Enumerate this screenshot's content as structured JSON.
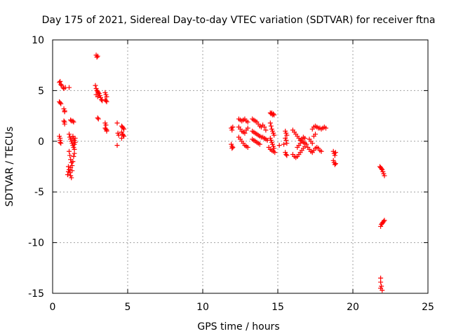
{
  "chart_data": {
    "type": "scatter",
    "title": "Day 175 of 2021, Sidereal Day-to-day VTEC variation (SDTVAR) for receiver ftna",
    "xlabel": "GPS time / hours",
    "ylabel": "SDTVAR / TECUs",
    "xlim": [
      0,
      25
    ],
    "ylim": [
      -15,
      10
    ],
    "xticks": [
      0,
      5,
      10,
      15,
      20,
      25
    ],
    "yticks": [
      10,
      5,
      0,
      -5,
      -10,
      -15
    ],
    "grid": true,
    "marker": "+",
    "color": "#ff0000",
    "series": [
      {
        "name": "SDTVAR",
        "points": [
          [
            0.45,
            5.8
          ],
          [
            0.5,
            5.9
          ],
          [
            0.55,
            5.6
          ],
          [
            0.6,
            5.5
          ],
          [
            0.7,
            5.3
          ],
          [
            0.75,
            5.2
          ],
          [
            0.85,
            5.3
          ],
          [
            0.45,
            3.9
          ],
          [
            0.5,
            3.8
          ],
          [
            0.55,
            3.7
          ],
          [
            0.75,
            3.2
          ],
          [
            0.8,
            3.0
          ],
          [
            0.8,
            2.9
          ],
          [
            0.75,
            2.0
          ],
          [
            0.8,
            1.9
          ],
          [
            0.8,
            1.7
          ],
          [
            0.45,
            0.5
          ],
          [
            0.5,
            0.3
          ],
          [
            0.5,
            0.1
          ],
          [
            0.5,
            -0.1
          ],
          [
            0.55,
            -0.2
          ],
          [
            1.1,
            5.3
          ],
          [
            1.2,
            2.1
          ],
          [
            1.25,
            2.0
          ],
          [
            1.35,
            2.0
          ],
          [
            1.4,
            1.9
          ],
          [
            1.1,
            0.7
          ],
          [
            1.15,
            0.4
          ],
          [
            1.2,
            0.2
          ],
          [
            1.25,
            0.0
          ],
          [
            1.3,
            -0.2
          ],
          [
            1.35,
            -0.4
          ],
          [
            1.4,
            -0.6
          ],
          [
            1.45,
            -0.8
          ],
          [
            1.35,
            0.5
          ],
          [
            1.4,
            0.3
          ],
          [
            1.45,
            0.1
          ],
          [
            1.1,
            -1.0
          ],
          [
            1.15,
            -1.4
          ],
          [
            1.2,
            -1.8
          ],
          [
            1.25,
            -2.1
          ],
          [
            1.3,
            -2.4
          ],
          [
            1.35,
            -2.0
          ],
          [
            1.4,
            -1.5
          ],
          [
            1.45,
            -1.2
          ],
          [
            1.05,
            -2.5
          ],
          [
            1.1,
            -2.8
          ],
          [
            1.15,
            -3.1
          ],
          [
            1.2,
            -3.4
          ],
          [
            1.25,
            -3.6
          ],
          [
            1.0,
            -3.3
          ],
          [
            1.05,
            -3.0
          ],
          [
            1.2,
            -2.6
          ],
          [
            1.3,
            -2.9
          ],
          [
            1.45,
            -0.3
          ],
          [
            1.5,
            -0.1
          ],
          [
            1.5,
            0.3
          ],
          [
            2.9,
            8.5
          ],
          [
            2.95,
            8.3
          ],
          [
            3.0,
            8.4
          ],
          [
            2.85,
            5.5
          ],
          [
            2.9,
            5.2
          ],
          [
            2.95,
            5.0
          ],
          [
            3.0,
            4.9
          ],
          [
            3.05,
            4.8
          ],
          [
            3.1,
            4.7
          ],
          [
            3.15,
            4.5
          ],
          [
            3.2,
            4.3
          ],
          [
            3.25,
            4.1
          ],
          [
            3.3,
            4.0
          ],
          [
            2.9,
            4.6
          ],
          [
            3.0,
            4.4
          ],
          [
            3.5,
            4.8
          ],
          [
            3.55,
            4.6
          ],
          [
            3.6,
            4.4
          ],
          [
            3.5,
            4.1
          ],
          [
            3.55,
            4.0
          ],
          [
            3.6,
            3.9
          ],
          [
            3.0,
            2.3
          ],
          [
            3.05,
            2.2
          ],
          [
            3.5,
            1.8
          ],
          [
            3.55,
            1.6
          ],
          [
            3.5,
            1.3
          ],
          [
            3.55,
            1.2
          ],
          [
            3.6,
            1.1
          ],
          [
            3.6,
            1.0
          ],
          [
            4.3,
            1.8
          ],
          [
            4.35,
            0.8
          ],
          [
            4.4,
            0.6
          ],
          [
            4.3,
            -0.4
          ],
          [
            4.6,
            1.5
          ],
          [
            4.65,
            1.4
          ],
          [
            4.7,
            1.3
          ],
          [
            4.75,
            1.2
          ],
          [
            4.6,
            0.9
          ],
          [
            4.65,
            0.7
          ],
          [
            4.7,
            0.6
          ],
          [
            4.75,
            0.5
          ],
          [
            4.6,
            0.3
          ],
          [
            11.9,
            1.3
          ],
          [
            11.95,
            1.1
          ],
          [
            12.0,
            1.4
          ],
          [
            11.9,
            -0.3
          ],
          [
            11.95,
            -0.5
          ],
          [
            12.0,
            -0.6
          ],
          [
            11.95,
            -0.7
          ],
          [
            12.4,
            2.2
          ],
          [
            12.5,
            2.1
          ],
          [
            12.6,
            2.0
          ],
          [
            12.7,
            2.1
          ],
          [
            12.8,
            2.2
          ],
          [
            12.9,
            2.0
          ],
          [
            13.0,
            1.9
          ],
          [
            12.4,
            1.4
          ],
          [
            12.5,
            1.2
          ],
          [
            12.6,
            1.0
          ],
          [
            12.7,
            0.9
          ],
          [
            12.8,
            0.8
          ],
          [
            12.9,
            1.1
          ],
          [
            13.0,
            1.3
          ],
          [
            12.4,
            0.4
          ],
          [
            12.5,
            0.2
          ],
          [
            12.6,
            0.0
          ],
          [
            12.7,
            -0.2
          ],
          [
            12.8,
            -0.4
          ],
          [
            12.9,
            -0.5
          ],
          [
            13.0,
            -0.6
          ],
          [
            13.3,
            2.2
          ],
          [
            13.4,
            2.1
          ],
          [
            13.5,
            2.0
          ],
          [
            13.6,
            1.9
          ],
          [
            13.7,
            1.7
          ],
          [
            13.8,
            1.5
          ],
          [
            13.9,
            1.4
          ],
          [
            13.3,
            1.0
          ],
          [
            13.4,
            0.9
          ],
          [
            13.5,
            0.8
          ],
          [
            13.6,
            0.7
          ],
          [
            13.7,
            0.6
          ],
          [
            13.8,
            0.5
          ],
          [
            13.9,
            0.4
          ],
          [
            13.3,
            0.2
          ],
          [
            13.4,
            0.1
          ],
          [
            13.5,
            0.0
          ],
          [
            13.6,
            -0.1
          ],
          [
            13.7,
            -0.2
          ],
          [
            13.8,
            -0.3
          ],
          [
            14.0,
            1.6
          ],
          [
            14.1,
            1.4
          ],
          [
            14.2,
            1.1
          ],
          [
            14.0,
            0.4
          ],
          [
            14.1,
            0.3
          ],
          [
            14.2,
            0.2
          ],
          [
            14.3,
            0.1
          ],
          [
            14.5,
            2.8
          ],
          [
            14.55,
            2.7
          ],
          [
            14.6,
            2.8
          ],
          [
            14.65,
            2.6
          ],
          [
            14.7,
            2.7
          ],
          [
            14.75,
            2.6
          ],
          [
            14.5,
            1.8
          ],
          [
            14.55,
            1.5
          ],
          [
            14.6,
            1.2
          ],
          [
            14.65,
            1.0
          ],
          [
            14.7,
            0.8
          ],
          [
            14.75,
            0.6
          ],
          [
            14.5,
            0.3
          ],
          [
            14.55,
            0.1
          ],
          [
            14.6,
            -0.1
          ],
          [
            14.65,
            -0.3
          ],
          [
            14.7,
            -0.5
          ],
          [
            14.75,
            -0.7
          ],
          [
            14.4,
            -0.6
          ],
          [
            14.5,
            -0.8
          ],
          [
            14.6,
            -0.9
          ],
          [
            14.7,
            -1.0
          ],
          [
            14.8,
            -1.1
          ],
          [
            15.1,
            -0.4
          ],
          [
            15.4,
            -0.3
          ],
          [
            15.5,
            1.0
          ],
          [
            15.55,
            0.8
          ],
          [
            15.6,
            0.6
          ],
          [
            15.5,
            0.3
          ],
          [
            15.55,
            0.1
          ],
          [
            15.6,
            -0.2
          ],
          [
            15.5,
            -1.1
          ],
          [
            15.55,
            -1.3
          ],
          [
            15.6,
            -1.4
          ],
          [
            16.0,
            1.1
          ],
          [
            16.1,
            0.9
          ],
          [
            16.2,
            0.7
          ],
          [
            16.3,
            0.5
          ],
          [
            16.4,
            0.3
          ],
          [
            16.5,
            0.1
          ],
          [
            16.6,
            0.0
          ],
          [
            16.7,
            -0.1
          ],
          [
            16.8,
            -0.2
          ],
          [
            16.9,
            -0.3
          ],
          [
            16.0,
            -1.3
          ],
          [
            16.1,
            -1.5
          ],
          [
            16.2,
            -1.6
          ],
          [
            16.3,
            -1.5
          ],
          [
            16.4,
            -1.3
          ],
          [
            16.5,
            -1.1
          ],
          [
            16.6,
            -0.9
          ],
          [
            16.7,
            -0.7
          ],
          [
            16.8,
            -0.5
          ],
          [
            16.3,
            -0.6
          ],
          [
            16.4,
            -0.4
          ],
          [
            16.5,
            -0.2
          ],
          [
            16.6,
            0.2
          ],
          [
            16.7,
            0.4
          ],
          [
            16.8,
            0.3
          ],
          [
            17.3,
            1.2
          ],
          [
            17.4,
            1.4
          ],
          [
            17.5,
            1.5
          ],
          [
            17.6,
            1.4
          ],
          [
            17.7,
            1.3
          ],
          [
            17.8,
            1.3
          ],
          [
            17.9,
            1.2
          ],
          [
            18.0,
            1.3
          ],
          [
            18.1,
            1.4
          ],
          [
            18.2,
            1.3
          ],
          [
            17.0,
            -0.6
          ],
          [
            17.1,
            -0.8
          ],
          [
            17.2,
            -1.0
          ],
          [
            17.3,
            -1.1
          ],
          [
            17.4,
            -0.9
          ],
          [
            17.5,
            -0.7
          ],
          [
            17.6,
            -0.6
          ],
          [
            17.7,
            -0.7
          ],
          [
            17.8,
            -0.9
          ],
          [
            17.9,
            -1.0
          ],
          [
            17.1,
            0.2
          ],
          [
            17.2,
            0.0
          ],
          [
            17.3,
            -0.2
          ],
          [
            17.4,
            0.5
          ],
          [
            17.5,
            0.7
          ],
          [
            18.7,
            -1.0
          ],
          [
            18.75,
            -1.2
          ],
          [
            18.8,
            -1.4
          ],
          [
            18.85,
            -1.1
          ],
          [
            18.7,
            -1.9
          ],
          [
            18.75,
            -2.1
          ],
          [
            18.8,
            -2.3
          ],
          [
            18.85,
            -2.2
          ],
          [
            21.8,
            -2.5
          ],
          [
            21.85,
            -2.6
          ],
          [
            21.9,
            -2.7
          ],
          [
            21.95,
            -2.8
          ],
          [
            22.0,
            -3.0
          ],
          [
            22.05,
            -3.2
          ],
          [
            22.1,
            -3.4
          ],
          [
            21.85,
            -8.4
          ],
          [
            21.9,
            -8.2
          ],
          [
            21.95,
            -8.1
          ],
          [
            22.0,
            -8.0
          ],
          [
            22.05,
            -7.9
          ],
          [
            22.1,
            -7.8
          ],
          [
            21.85,
            -13.5
          ],
          [
            21.85,
            -13.9
          ],
          [
            21.9,
            -14.3
          ],
          [
            21.85,
            -14.5
          ],
          [
            21.95,
            -14.7
          ]
        ]
      }
    ]
  }
}
